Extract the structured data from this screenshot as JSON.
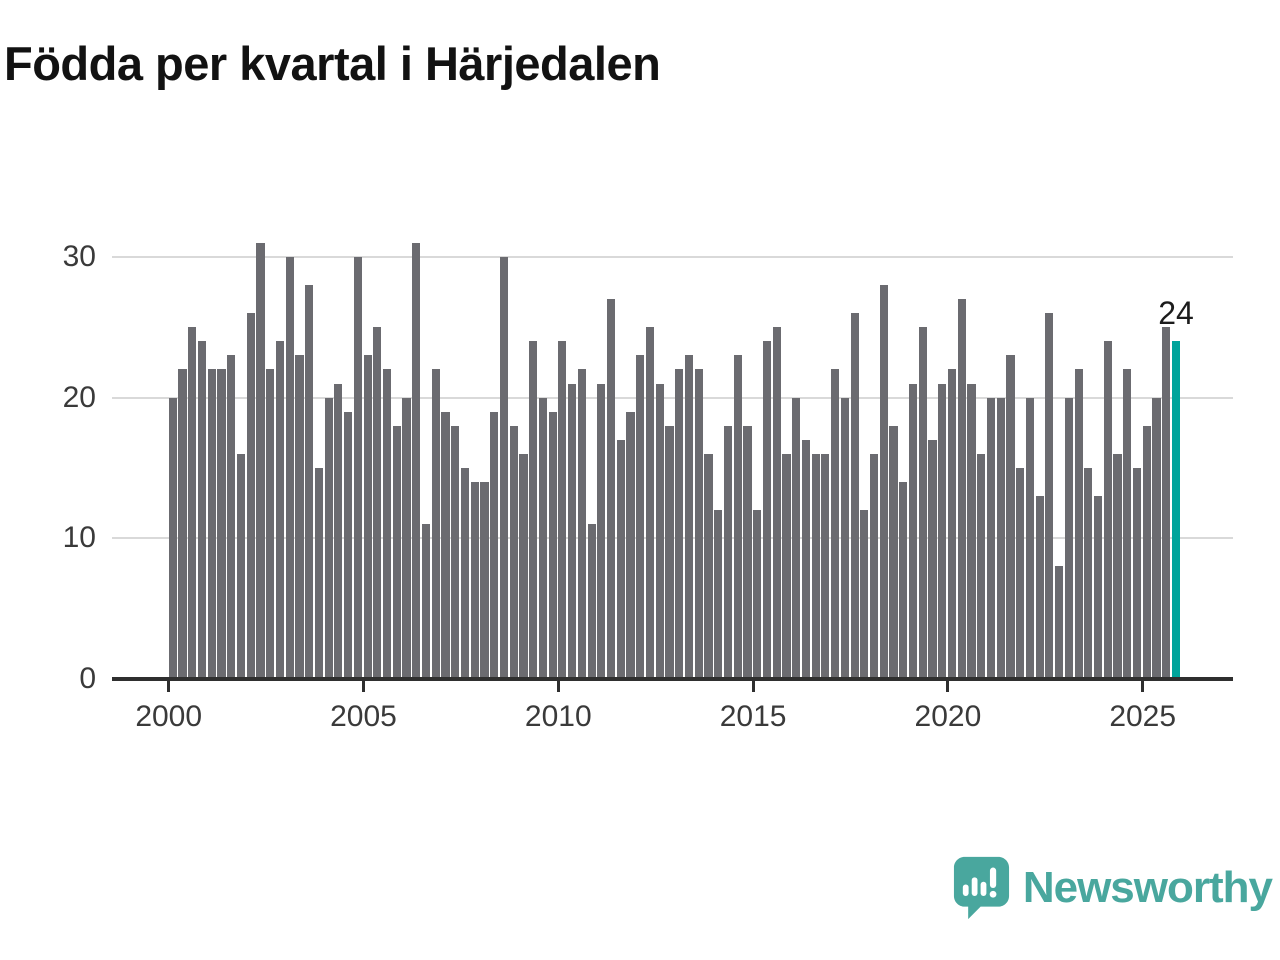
{
  "title": "Födda per kvartal i Härjedalen",
  "annotation": {
    "label": "24"
  },
  "logo": {
    "text": "Newsworthy",
    "icon": "speech-bubble-bar-chart-icon"
  },
  "colors": {
    "background": "#ffffff",
    "bar": "#6b6b70",
    "highlight_bar": "#00a49b",
    "grid": "#d9d9d9",
    "axis": "#2f2f2f",
    "tick_label": "#3a3a3a",
    "title": "#121212",
    "annotation": "#1c1c1c",
    "logo": "#49a79e"
  },
  "chart_data": {
    "type": "bar",
    "title": "Födda per kvartal i Härjedalen",
    "frequency": "quarterly",
    "x_range": "2000 Q1 – 2025 Q4",
    "x_tick_labels": [
      "2000",
      "2005",
      "2010",
      "2015",
      "2020",
      "2025"
    ],
    "y_ticks": [
      "0",
      "10",
      "20",
      "30"
    ],
    "ylim": [
      0,
      31
    ],
    "grid": "horizontal-light",
    "legend": "none",
    "series": [
      {
        "name": "Födda per kvartal",
        "by_year": [
          {
            "year": 2000,
            "q": [
              20,
              22,
              25,
              24
            ]
          },
          {
            "year": 2001,
            "q": [
              22,
              22,
              23,
              16
            ]
          },
          {
            "year": 2002,
            "q": [
              26,
              31,
              22,
              24
            ]
          },
          {
            "year": 2003,
            "q": [
              30,
              23,
              28,
              15
            ]
          },
          {
            "year": 2004,
            "q": [
              20,
              21,
              19,
              30
            ]
          },
          {
            "year": 2005,
            "q": [
              23,
              25,
              22,
              18
            ]
          },
          {
            "year": 2006,
            "q": [
              20,
              31,
              11,
              22
            ]
          },
          {
            "year": 2007,
            "q": [
              19,
              18,
              15,
              14
            ]
          },
          {
            "year": 2008,
            "q": [
              14,
              19,
              30,
              18
            ]
          },
          {
            "year": 2009,
            "q": [
              16,
              24,
              20,
              19
            ]
          },
          {
            "year": 2010,
            "q": [
              24,
              21,
              22,
              11
            ]
          },
          {
            "year": 2011,
            "q": [
              21,
              27,
              17,
              19
            ]
          },
          {
            "year": 2012,
            "q": [
              23,
              25,
              21,
              18
            ]
          },
          {
            "year": 2013,
            "q": [
              22,
              23,
              22,
              16
            ]
          },
          {
            "year": 2014,
            "q": [
              12,
              18,
              23,
              18
            ]
          },
          {
            "year": 2015,
            "q": [
              12,
              24,
              25,
              16
            ]
          },
          {
            "year": 2016,
            "q": [
              20,
              17,
              16,
              16
            ]
          },
          {
            "year": 2017,
            "q": [
              22,
              20,
              26,
              12
            ]
          },
          {
            "year": 2018,
            "q": [
              16,
              28,
              18,
              14
            ]
          },
          {
            "year": 2019,
            "q": [
              21,
              25,
              17,
              21
            ]
          },
          {
            "year": 2020,
            "q": [
              22,
              27,
              21,
              16
            ]
          },
          {
            "year": 2021,
            "q": [
              20,
              20,
              23,
              15
            ]
          },
          {
            "year": 2022,
            "q": [
              20,
              13,
              26,
              8
            ]
          },
          {
            "year": 2023,
            "q": [
              20,
              22,
              15,
              13
            ]
          },
          {
            "year": 2024,
            "q": [
              24,
              16,
              22,
              15
            ]
          },
          {
            "year": 2025,
            "q": [
              18,
              20,
              25,
              24
            ]
          }
        ]
      }
    ],
    "highlight": {
      "period": "2025 Q4",
      "value": 24,
      "label": "24",
      "position": "last-bar"
    }
  }
}
